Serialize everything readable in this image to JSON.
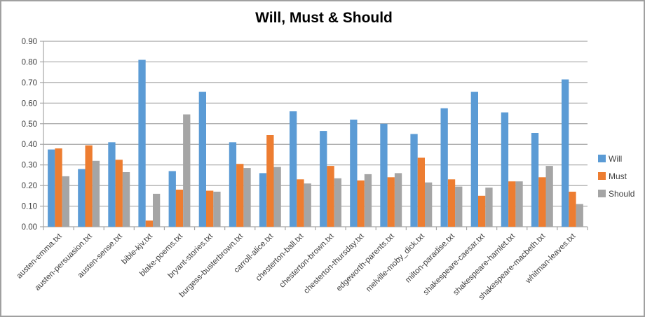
{
  "window": {
    "background": "#ffffff",
    "border_color": "#a0a0a0"
  },
  "chart_data": {
    "type": "bar",
    "title": "Will, Must & Should",
    "categories": [
      "austen-emma.txt",
      "austen-persuasion.txt",
      "austen-sense.txt",
      "bible-kjv.txt",
      "blake-poems.txt",
      "bryant-stories.txt",
      "burgess-busterbrown.txt",
      "carroll-alice.txt",
      "chesterton-ball.txt",
      "chesterton-brown.txt",
      "chesterton-thursday.txt",
      "edgeworth-parents.txt",
      "melville-moby_dick.txt",
      "milton-paradise.txt",
      "shakespeare-caesar.txt",
      "shakespeare-hamlet.txt",
      "shakespeare-macbeth.txt",
      "whitman-leaves.txt"
    ],
    "series": [
      {
        "name": "Will",
        "color": "#5B9BD5",
        "values": [
          0.375,
          0.28,
          0.41,
          0.81,
          0.27,
          0.655,
          0.41,
          0.26,
          0.56,
          0.465,
          0.52,
          0.5,
          0.45,
          0.575,
          0.655,
          0.555,
          0.455,
          0.715
        ]
      },
      {
        "name": "Must",
        "color": "#ED7D31",
        "values": [
          0.38,
          0.395,
          0.325,
          0.03,
          0.18,
          0.175,
          0.305,
          0.445,
          0.23,
          0.295,
          0.225,
          0.24,
          0.335,
          0.23,
          0.15,
          0.22,
          0.24,
          0.17
        ]
      },
      {
        "name": "Should",
        "color": "#A5A5A5",
        "values": [
          0.245,
          0.32,
          0.265,
          0.16,
          0.545,
          0.17,
          0.285,
          0.29,
          0.21,
          0.235,
          0.255,
          0.26,
          0.215,
          0.195,
          0.19,
          0.22,
          0.295,
          0.11
        ]
      }
    ],
    "xlabel": "",
    "ylabel": "",
    "ylim": [
      0,
      0.9
    ],
    "ytick_step": 0.1,
    "ytick_labels": [
      "0.00",
      "0.10",
      "0.20",
      "0.30",
      "0.40",
      "0.50",
      "0.60",
      "0.70",
      "0.80",
      "0.90"
    ],
    "grid": true,
    "legend_position": "right",
    "gridline_color": "#a6a6a6",
    "axis_color": "#a6a6a6",
    "axis_text_color": "#404040"
  }
}
